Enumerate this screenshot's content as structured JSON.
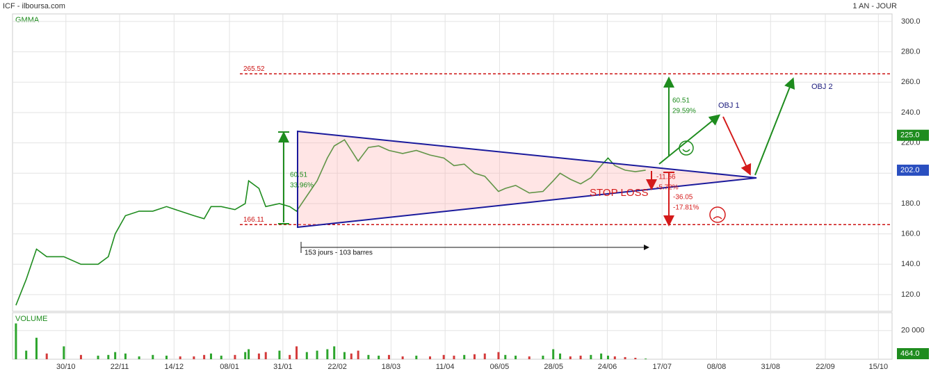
{
  "chart_data": {
    "type": "line",
    "title": "ICF - ilboursa.com",
    "subtitle": "1 AN - JOUR",
    "panel_label": "GMMA",
    "color": "#1e8c1e",
    "xlim": [
      0,
      257
    ],
    "xticks": [
      {
        "value": 15.6,
        "label": "30/10"
      },
      {
        "value": 31.3,
        "label": "22/11"
      },
      {
        "value": 47.2,
        "label": "14/12"
      },
      {
        "value": 63.4,
        "label": "08/01"
      },
      {
        "value": 79,
        "label": "31/01"
      },
      {
        "value": 94.9,
        "label": "22/02"
      },
      {
        "value": 110.6,
        "label": "18/03"
      },
      {
        "value": 126.4,
        "label": "11/04"
      },
      {
        "value": 142.3,
        "label": "06/05"
      },
      {
        "value": 158.1,
        "label": "28/05"
      },
      {
        "value": 173.8,
        "label": "24/06"
      },
      {
        "value": 189.8,
        "label": "17/07"
      },
      {
        "value": 205.7,
        "label": "08/08"
      },
      {
        "value": 221.5,
        "label": "31/08"
      },
      {
        "value": 237.5,
        "label": "22/09"
      },
      {
        "value": 253,
        "label": "15/10"
      }
    ],
    "ylim": [
      109,
      305
    ],
    "yticks": [
      {
        "value": 120,
        "label": "120.0"
      },
      {
        "value": 140,
        "label": "140.0"
      },
      {
        "value": 160,
        "label": "160.0"
      },
      {
        "value": 180,
        "label": "180.0"
      },
      {
        "value": 200,
        "label": "200.0"
      },
      {
        "value": 220,
        "label": "220.0"
      },
      {
        "value": 240,
        "label": "240.0"
      },
      {
        "value": 260,
        "label": "260.0"
      },
      {
        "value": 280,
        "label": "280.0"
      },
      {
        "value": 300,
        "label": "300.0"
      }
    ],
    "grid": true,
    "x": [
      1,
      4,
      7,
      10,
      15,
      20,
      25,
      28,
      30,
      33,
      37,
      41,
      45,
      49,
      53,
      56,
      58,
      61,
      65,
      68,
      69,
      72,
      74,
      78,
      81,
      83,
      86,
      89,
      92,
      94,
      97,
      99,
      101,
      104,
      107,
      110,
      114,
      118,
      122,
      126,
      129,
      132,
      135,
      138,
      142,
      144,
      147,
      151,
      155,
      158,
      160,
      163,
      166,
      169,
      172,
      174,
      176,
      179,
      182,
      185
    ],
    "values": [
      113,
      130,
      150,
      145,
      145,
      140,
      140,
      145,
      160,
      172,
      175,
      175,
      178,
      175,
      172,
      170,
      178,
      178,
      176,
      180,
      195,
      190,
      178,
      180,
      178,
      175,
      185,
      195,
      210,
      218,
      222,
      215,
      208,
      217,
      218,
      215,
      213,
      215,
      212,
      210,
      205,
      206,
      200,
      198,
      188,
      190,
      192,
      187,
      188,
      195,
      200,
      196,
      193,
      197,
      205,
      210,
      205,
      202,
      201,
      202
    ],
    "levels": [
      {
        "value": 265.52,
        "label": "265.52"
      },
      {
        "value": 166.11,
        "label": "166.11"
      }
    ],
    "level_color": "#cc1111",
    "price_tags": [
      {
        "value": 225,
        "label": "225.0",
        "color": "#1e8c1e"
      },
      {
        "value": 202,
        "label": "202.0",
        "color": "#2a4fc0"
      }
    ],
    "volume": {
      "label": "VOLUME",
      "up_color": "#2da52d",
      "down_color": "#d43b3b",
      "ylim": [
        0,
        32500
      ],
      "yticks": [
        {
          "value": 20000,
          "label": "20 000"
        }
      ],
      "values": [
        25000,
        6000,
        15000,
        4000,
        9000,
        3000,
        2500,
        3000,
        5000,
        4000,
        2000,
        3000,
        2500,
        2000,
        2000,
        3000,
        4000,
        2500,
        3000,
        5000,
        7000,
        4000,
        5000,
        6000,
        3000,
        9000,
        5000,
        6000,
        7000,
        9000,
        5000,
        4000,
        6000,
        3000,
        2500,
        3000,
        2000,
        2500,
        2000,
        3000,
        2500,
        3000,
        3500,
        4000,
        5000,
        3000,
        2500,
        2000,
        2500,
        7000,
        4000,
        2000,
        2500,
        3000,
        4000,
        2500,
        2000,
        1500,
        1000,
        464
      ],
      "last_tag": {
        "value": 464,
        "label": "464.0"
      }
    },
    "annotations": {
      "left_gain": "60.51",
      "left_gain_pct": "33.96%",
      "duration": "153 jours - 103 barres",
      "target_gain": "60.51",
      "target_gain_pct": "29.59%",
      "stop_small": "-11.56",
      "stop_small_pct": "-5.72%",
      "stop_big": "-36.05",
      "stop_big_pct": "-17.81%",
      "stop_loss": "STOP LOSS",
      "obj1": "OBJ 1",
      "obj2": "OBJ 2"
    }
  }
}
